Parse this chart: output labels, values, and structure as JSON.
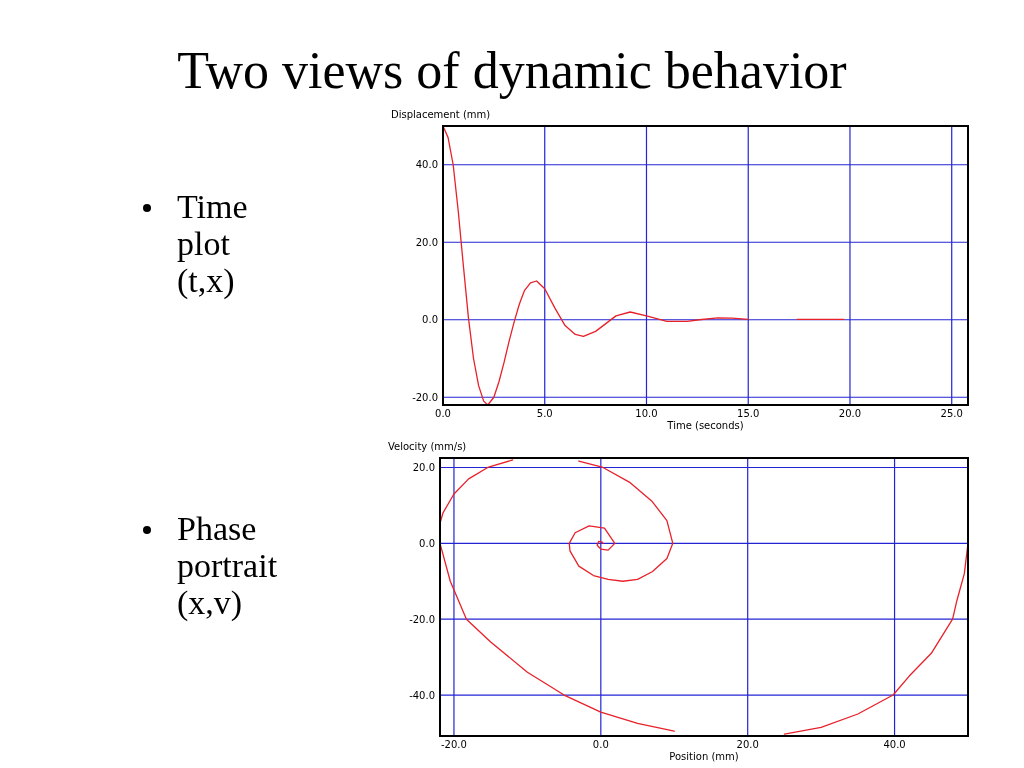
{
  "chart_data": [
    {
      "type": "line",
      "title": "Two views of dynamic behavior",
      "xlabel": "Time (seconds)",
      "ylabel": "Displacement (mm)",
      "annotations": [
        "Time plot (t,x)"
      ],
      "xlim": [
        0,
        25.8
      ],
      "ylim": [
        -22,
        50
      ],
      "xticks": [
        {
          "value": 0,
          "label": "0.0"
        },
        {
          "value": 5,
          "label": "5.0"
        },
        {
          "value": 10,
          "label": "10.0"
        },
        {
          "value": 15,
          "label": "15.0"
        },
        {
          "value": 20,
          "label": "20.0"
        },
        {
          "value": 25,
          "label": "25.0"
        }
      ],
      "yticks": [
        {
          "value": -20,
          "label": "-20.0"
        },
        {
          "value": 0,
          "label": "0.0"
        },
        {
          "value": 20,
          "label": "20.0"
        },
        {
          "value": 40,
          "label": "40.0"
        }
      ],
      "grid": true,
      "series": [
        {
          "color": "#e8202a",
          "x": [
            0,
            0.25,
            0.5,
            0.75,
            1.0,
            1.25,
            1.5,
            1.75,
            2.0,
            2.2,
            2.5,
            2.75,
            3.0,
            3.25,
            3.5,
            3.75,
            4.0,
            4.3,
            4.6,
            5.0,
            5.5,
            6.0,
            6.5,
            6.9,
            7.5,
            8.0,
            8.5,
            9.2,
            10.0,
            10.5,
            11.0,
            12.0,
            12.6,
            13.5,
            14.2,
            15.0,
            16.2,
            17.4,
            18.5,
            19.7
          ],
          "values": [
            50,
            47,
            40,
            28,
            14,
            0.5,
            -10,
            -17,
            -21,
            -22,
            -20,
            -16,
            -11,
            -5.5,
            -0.5,
            4,
            7.5,
            9.5,
            10,
            8,
            3,
            -1.5,
            -3.8,
            -4.3,
            -3,
            -1,
            1,
            2,
            1,
            0.3,
            -0.4,
            -0.4,
            0,
            0.5,
            0.4,
            0.1,
            null,
            0.1,
            0.1,
            0.1
          ]
        }
      ]
    },
    {
      "type": "line",
      "xlabel": "Position (mm)",
      "ylabel": "Velocity (mm/s)",
      "annotations": [
        "Phase portrait (x,v)"
      ],
      "xlim": [
        -21.9,
        50
      ],
      "ylim": [
        -50.8,
        22.5
      ],
      "xticks": [
        {
          "value": -20,
          "label": "-20.0"
        },
        {
          "value": 0,
          "label": "0.0"
        },
        {
          "value": 20,
          "label": "20.0"
        },
        {
          "value": 40,
          "label": "40.0"
        }
      ],
      "yticks": [
        {
          "value": -40,
          "label": "-40.0"
        },
        {
          "value": -20,
          "label": "-20.0"
        },
        {
          "value": 0,
          "label": "0.0"
        },
        {
          "value": 20,
          "label": "20.0"
        }
      ],
      "grid": true,
      "series": [
        {
          "color": "#e8202a",
          "x": [
            50,
            49.5,
            48.5,
            47.9,
            45,
            42,
            39.8,
            35,
            30,
            25,
            21,
            18,
            15,
            10,
            5,
            0,
            -5,
            -10,
            -15,
            -18.3,
            -20.5,
            -21.9,
            -21.9,
            -21.5,
            -20,
            -18,
            -15.4,
            -12,
            -10.2,
            -8,
            -5.5,
            -3,
            0.3,
            4,
            7,
            9,
            9.8,
            9,
            7,
            5,
            3,
            1,
            -1,
            -3,
            -4.2,
            -4.3,
            -3.5,
            -1.6,
            0.5,
            1.9,
            1,
            0,
            -0.5,
            -0.3,
            0.2,
            0.3
          ],
          "values": [
            0,
            -8,
            -15,
            -20,
            -29,
            -35,
            -40,
            -45,
            -48.5,
            -50.3,
            null,
            null,
            null,
            -49.5,
            -47.5,
            -44.5,
            -40,
            -34,
            -26,
            -20,
            -10,
            0,
            5.3,
            8,
            13,
            17,
            20,
            22,
            null,
            null,
            null,
            21.7,
            20,
            16,
            11,
            6,
            0,
            -4,
            -7.5,
            -9.5,
            -10,
            -9.5,
            -8.5,
            -6,
            -2,
            0,
            2.8,
            4.6,
            4,
            0,
            -1.8,
            -1.5,
            -0.5,
            0.5,
            0.3,
            0
          ]
        }
      ]
    }
  ]
}
